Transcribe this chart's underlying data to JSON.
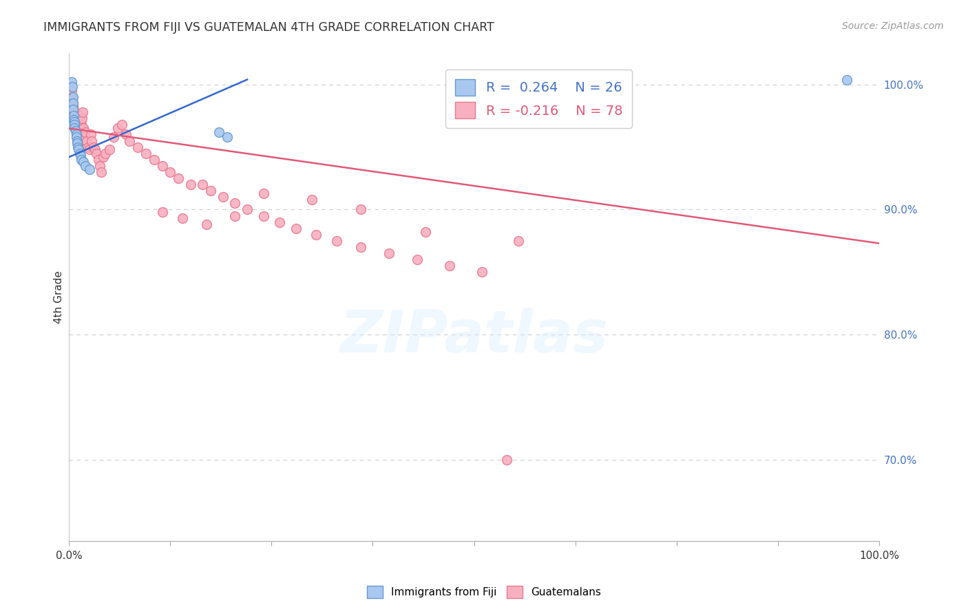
{
  "title": "IMMIGRANTS FROM FIJI VS GUATEMALAN 4TH GRADE CORRELATION CHART",
  "source": "Source: ZipAtlas.com",
  "ylabel": "4th Grade",
  "ytick_labels": [
    "100.0%",
    "90.0%",
    "80.0%",
    "70.0%"
  ],
  "ytick_values": [
    1.0,
    0.9,
    0.8,
    0.7
  ],
  "xlim": [
    0.0,
    1.0
  ],
  "ylim": [
    0.635,
    1.025
  ],
  "fiji_color": "#a8c8f0",
  "fiji_edge_color": "#6699cc",
  "guatemalan_color": "#f8b0c0",
  "guatemalan_edge_color": "#e87890",
  "fiji_line_color": "#3366cc",
  "guatemalan_line_color": "#e05878",
  "legend_fiji_R": "0.264",
  "legend_fiji_N": "26",
  "legend_guatemalan_R": "-0.216",
  "legend_guatemalan_N": "78",
  "fiji_x": [
    0.003,
    0.004,
    0.005,
    0.005,
    0.005,
    0.006,
    0.006,
    0.007,
    0.007,
    0.007,
    0.008,
    0.009,
    0.009,
    0.01,
    0.01,
    0.011,
    0.012,
    0.013,
    0.014,
    0.015,
    0.018,
    0.02,
    0.025,
    0.185,
    0.195,
    0.96
  ],
  "fiji_y": [
    1.002,
    0.998,
    0.99,
    0.985,
    0.98,
    0.975,
    0.972,
    0.97,
    0.968,
    0.965,
    0.963,
    0.96,
    0.958,
    0.955,
    0.953,
    0.95,
    0.948,
    0.945,
    0.943,
    0.94,
    0.938,
    0.935,
    0.932,
    0.962,
    0.958,
    1.004
  ],
  "guatemalan_x": [
    0.003,
    0.004,
    0.004,
    0.005,
    0.005,
    0.006,
    0.006,
    0.007,
    0.007,
    0.008,
    0.008,
    0.009,
    0.009,
    0.01,
    0.01,
    0.011,
    0.011,
    0.012,
    0.012,
    0.013,
    0.014,
    0.015,
    0.016,
    0.017,
    0.018,
    0.019,
    0.02,
    0.022,
    0.024,
    0.025,
    0.027,
    0.028,
    0.03,
    0.032,
    0.034,
    0.036,
    0.038,
    0.04,
    0.042,
    0.045,
    0.05,
    0.055,
    0.06,
    0.065,
    0.07,
    0.075,
    0.085,
    0.095,
    0.105,
    0.115,
    0.125,
    0.135,
    0.15,
    0.165,
    0.175,
    0.19,
    0.205,
    0.22,
    0.24,
    0.26,
    0.28,
    0.305,
    0.33,
    0.36,
    0.395,
    0.43,
    0.47,
    0.51,
    0.555,
    0.44,
    0.36,
    0.3,
    0.24,
    0.205,
    0.17,
    0.14,
    0.115,
    0.54
  ],
  "guatemalan_y": [
    0.995,
    0.99,
    0.988,
    0.985,
    0.983,
    0.98,
    0.977,
    0.975,
    0.972,
    0.97,
    0.967,
    0.965,
    0.962,
    0.96,
    0.957,
    0.955,
    0.952,
    0.965,
    0.96,
    0.975,
    0.97,
    0.968,
    0.973,
    0.978,
    0.965,
    0.958,
    0.962,
    0.955,
    0.95,
    0.948,
    0.96,
    0.955,
    0.95,
    0.948,
    0.945,
    0.94,
    0.935,
    0.93,
    0.942,
    0.945,
    0.948,
    0.958,
    0.965,
    0.968,
    0.96,
    0.955,
    0.95,
    0.945,
    0.94,
    0.935,
    0.93,
    0.925,
    0.92,
    0.92,
    0.915,
    0.91,
    0.905,
    0.9,
    0.895,
    0.89,
    0.885,
    0.88,
    0.875,
    0.87,
    0.865,
    0.86,
    0.855,
    0.85,
    0.875,
    0.882,
    0.9,
    0.908,
    0.913,
    0.895,
    0.888,
    0.893,
    0.898,
    0.7
  ],
  "marker_size": 100,
  "background_color": "#ffffff",
  "grid_color": "#cccccc",
  "fiji_trend_x0": 0.0,
  "fiji_trend_y0": 0.942,
  "fiji_trend_x1": 0.22,
  "fiji_trend_y1": 1.004,
  "guat_trend_x0": 0.0,
  "guat_trend_y0": 0.965,
  "guat_trend_x1": 1.0,
  "guat_trend_y1": 0.873
}
